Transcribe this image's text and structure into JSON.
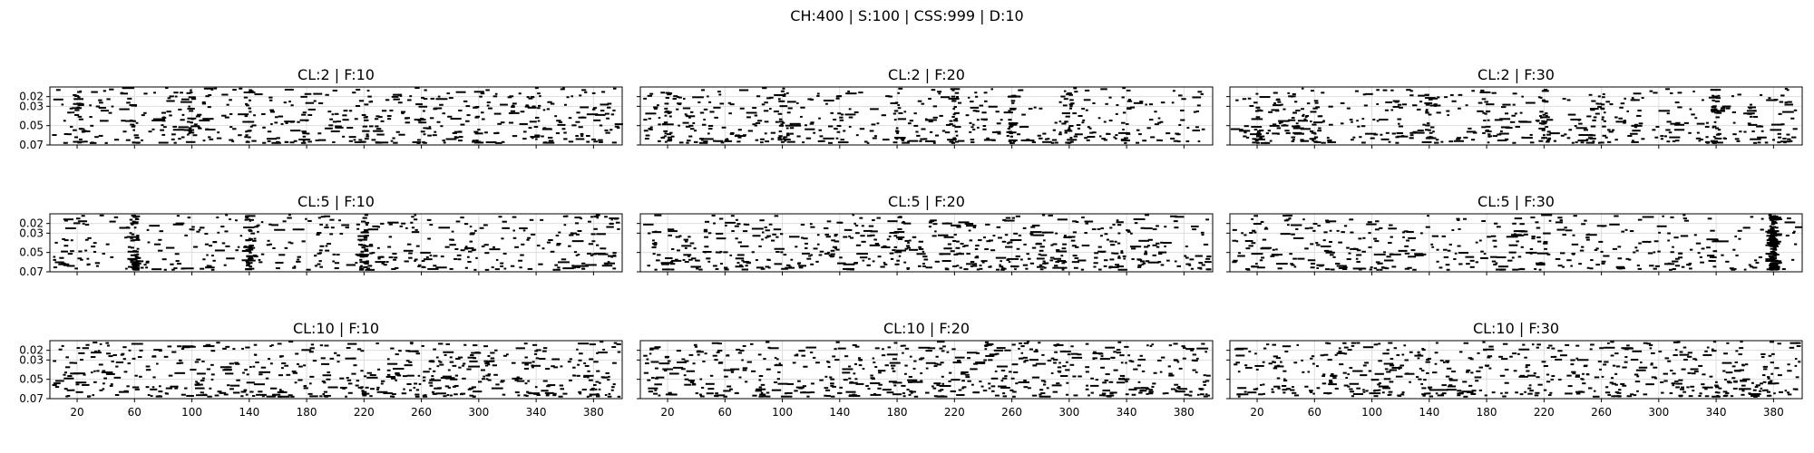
{
  "figure_title": "CH:400 | S:100 | CSS:999 | D:10",
  "chart_data": {
    "type": "scatter",
    "layout": "grid-3x3",
    "grid": true,
    "marker_color": "#000000",
    "x_ticks": [
      20,
      60,
      100,
      140,
      180,
      220,
      260,
      300,
      340,
      380
    ],
    "x_tick_labels": [
      "20",
      "60",
      "100",
      "140",
      "180",
      "220",
      "260",
      "300",
      "340",
      "380"
    ],
    "xlim": [
      1,
      400
    ],
    "y_ticks": [
      0.02,
      0.03,
      0.05,
      0.07
    ],
    "y_tick_labels": [
      "0.02",
      "0.03",
      "0.05",
      "0.07"
    ],
    "ylim": [
      0.07,
      0.01
    ],
    "y_inverted": true,
    "panels": [
      {
        "title": "CL:2 | F:10",
        "cl": 2,
        "f": 10,
        "seed": 11,
        "cluster_x": [
          20,
          60,
          100,
          140,
          180,
          220,
          260,
          300,
          340
        ]
      },
      {
        "title": "CL:2 | F:20",
        "cl": 2,
        "f": 20,
        "seed": 23,
        "cluster_x": [
          20,
          100,
          140,
          180,
          220,
          260,
          300,
          340
        ]
      },
      {
        "title": "CL:2 | F:30",
        "cl": 2,
        "f": 30,
        "seed": 37,
        "cluster_x": [
          20,
          60,
          140,
          180,
          220,
          260,
          340
        ]
      },
      {
        "title": "CL:5 | F:10",
        "cl": 5,
        "f": 10,
        "seed": 41,
        "cluster_x": [
          60,
          140,
          220
        ]
      },
      {
        "title": "CL:5 | F:20",
        "cl": 5,
        "f": 20,
        "seed": 53,
        "cluster_x": []
      },
      {
        "title": "CL:5 | F:30",
        "cl": 5,
        "f": 30,
        "seed": 67,
        "cluster_x": [
          380
        ]
      },
      {
        "title": "CL:10 | F:10",
        "cl": 10,
        "f": 10,
        "seed": 71,
        "cluster_x": []
      },
      {
        "title": "CL:10 | F:20",
        "cl": 10,
        "f": 20,
        "seed": 83,
        "cluster_x": []
      },
      {
        "title": "CL:10 | F:30",
        "cl": 10,
        "f": 30,
        "seed": 97,
        "cluster_x": []
      }
    ]
  }
}
